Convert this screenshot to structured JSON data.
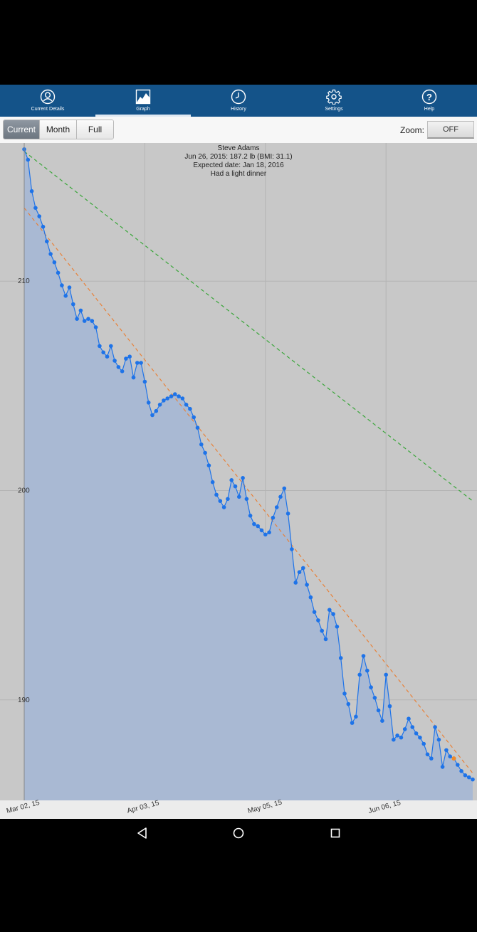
{
  "tabs": [
    {
      "label": "Current Details",
      "icon": "person-circle-icon"
    },
    {
      "label": "Graph",
      "icon": "graph-icon",
      "active": true
    },
    {
      "label": "History",
      "icon": "clock-icon"
    },
    {
      "label": "Settings",
      "icon": "gear-icon"
    },
    {
      "label": "Help",
      "icon": "help-icon"
    }
  ],
  "toolbar": {
    "range_buttons": [
      "Current",
      "Month",
      "Full"
    ],
    "selected_range": "Current",
    "zoom_label": "Zoom:",
    "zoom_value": "OFF"
  },
  "colors": {
    "tabbar": "#145389",
    "series_line": "#1e73e8",
    "series_fill": "#a9b9d3",
    "trend_line": "#e8823a",
    "goal_line": "#3aa63a",
    "last_point": "#f08a2a",
    "plot_background": "#c8c8c8"
  },
  "chart_data": {
    "type": "line",
    "annotation": [
      "Steve Adams",
      "Jun 26, 2015: 187.2 lb (BMI: 31.1)",
      "Expected date: Jan 18, 2016",
      "Had a light dinner"
    ],
    "x_ticks": [
      "Mar 02, 15",
      "Apr 03, 15",
      "May 05, 15",
      "Jun 06, 15"
    ],
    "y_ticks": [
      210,
      200,
      190
    ],
    "ylim": [
      185.2,
      216.6
    ],
    "xlim": [
      0,
      119
    ],
    "grid": true,
    "series": [
      {
        "x": [
          0,
          1,
          2,
          3,
          4,
          5,
          6,
          7,
          8,
          9,
          10,
          11,
          12,
          13,
          14,
          15,
          16,
          17,
          18,
          19,
          20,
          21,
          22,
          23,
          24,
          25,
          26,
          27,
          28,
          29,
          30,
          31,
          32,
          33,
          34,
          35,
          36,
          37,
          38,
          39,
          40,
          41,
          42,
          43,
          44,
          45,
          46,
          47,
          48,
          49,
          50,
          51,
          52,
          53,
          54,
          55,
          56,
          57,
          58,
          59,
          60,
          61,
          62,
          63,
          64,
          65,
          66,
          67,
          68,
          69,
          70,
          71,
          72,
          73,
          74,
          75,
          76,
          77,
          78,
          79,
          80,
          81,
          82,
          83,
          84,
          85,
          86,
          87,
          88,
          89,
          90,
          91,
          92,
          93,
          94,
          95,
          96,
          97,
          98,
          99,
          100,
          101,
          102,
          103,
          104,
          105,
          106,
          107,
          108,
          109,
          110,
          111,
          112,
          113,
          114,
          115,
          116,
          117,
          118,
          119
        ],
        "values": [
          216.3,
          215.8,
          214.3,
          213.5,
          213.1,
          212.6,
          211.9,
          211.3,
          210.9,
          210.4,
          209.8,
          209.3,
          209.7,
          208.9,
          208.2,
          208.6,
          208.1,
          208.2,
          208.1,
          207.8,
          206.9,
          206.6,
          206.4,
          206.9,
          206.2,
          205.9,
          205.7,
          206.3,
          206.4,
          205.4,
          206.1,
          206.1,
          205.2,
          204.2,
          203.6,
          203.8,
          204.1,
          204.3,
          204.4,
          204.5,
          204.6,
          204.5,
          204.4,
          204.1,
          203.9,
          203.5,
          203.0,
          202.2,
          201.8,
          201.2,
          200.4,
          199.8,
          199.5,
          199.2,
          199.6,
          200.5,
          200.2,
          199.7,
          200.6,
          199.6,
          198.8,
          198.4,
          198.3,
          198.1,
          197.9,
          198.0,
          198.7,
          199.2,
          199.7,
          200.1,
          198.9,
          197.2,
          195.6,
          196.1,
          196.3,
          195.5,
          194.9,
          194.2,
          193.8,
          193.3,
          192.9,
          194.3,
          194.1,
          193.5,
          192.0,
          190.3,
          189.8,
          188.9,
          189.2,
          191.2,
          192.1,
          191.4,
          190.6,
          190.1,
          189.5,
          189.0,
          191.2,
          189.7,
          188.1,
          188.3,
          188.2,
          188.6,
          189.1,
          188.7,
          188.4,
          188.2,
          187.9,
          187.4,
          187.2,
          188.7,
          188.1,
          186.8,
          187.6,
          187.3,
          187.2,
          186.9,
          186.6,
          186.4,
          186.3,
          186.2
        ],
        "style": "blue-line-with-points"
      }
    ]
  }
}
